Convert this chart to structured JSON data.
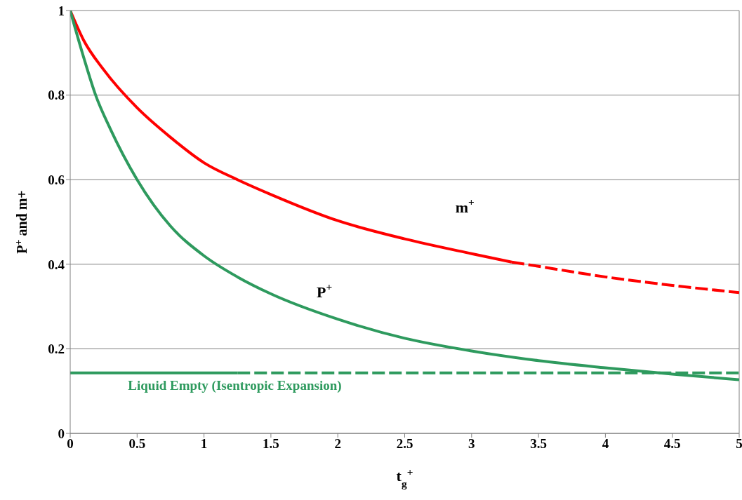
{
  "chart_data": {
    "type": "line",
    "xlabel": "t$_{g}$$^{+}$",
    "ylabel": "P$^{+}$ and m+",
    "xlim": [
      0,
      5
    ],
    "xticks": [
      0,
      0.5,
      1,
      1.5,
      2,
      2.5,
      3,
      3.5,
      4,
      4.5,
      5
    ],
    "ylim": [
      0,
      1
    ],
    "yticks": [
      0,
      0.2,
      0.4,
      0.6,
      0.8,
      1
    ],
    "grid": "y",
    "marker": "none",
    "series": [
      {
        "color": "#ff0000",
        "line_style": "solid",
        "x": [
          0,
          0.1,
          0.25,
          0.5,
          0.75,
          1,
          1.25,
          1.5,
          2,
          2.5,
          3,
          3.3
        ],
        "values": [
          1,
          0.93,
          0.86,
          0.77,
          0.7,
          0.64,
          0.6,
          0.565,
          0.503,
          0.46,
          0.425,
          0.405
        ]
      },
      {
        "color": "#ff0000",
        "line_style": "dashed",
        "x": [
          3.3,
          3.5,
          4,
          4.5,
          5
        ],
        "values": [
          0.405,
          0.395,
          0.37,
          0.35,
          0.333
        ]
      },
      {
        "color": "#2e9a5e",
        "line_style": "solid",
        "x": [
          0,
          0.1,
          0.19,
          0.3,
          0.5,
          0.75,
          1,
          1.25,
          1.5,
          2,
          2.5,
          3,
          3.5,
          4,
          4.5,
          5
        ],
        "values": [
          1,
          0.89,
          0.8,
          0.72,
          0.6,
          0.49,
          0.42,
          0.37,
          0.33,
          0.27,
          0.225,
          0.195,
          0.172,
          0.155,
          0.14,
          0.127
        ]
      },
      {
        "color": "#2e9a5e",
        "line_style": "solid",
        "x": [
          0,
          1.25
        ],
        "values": [
          0.143,
          0.143
        ]
      },
      {
        "color": "#2e9a5e",
        "line_style": "dashed",
        "x": [
          1.25,
          5
        ],
        "values": [
          0.143,
          0.143
        ]
      }
    ],
    "annotations": [
      "m$^{+}$",
      "P$^{+}$",
      "Liquid Empty (Isentropic Expansion)"
    ]
  }
}
